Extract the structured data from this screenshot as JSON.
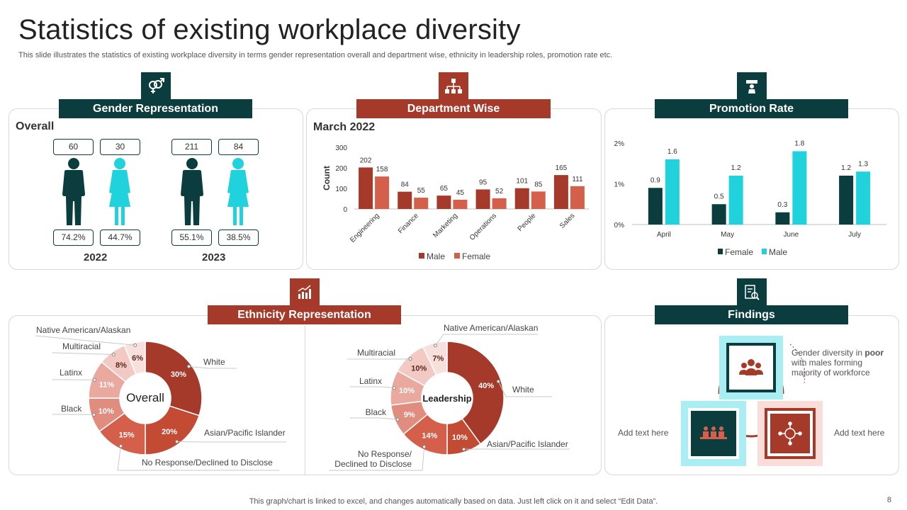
{
  "title": "Statistics of existing workplace diversity",
  "subtitle": "This slide illustrates the statistics of existing workplace diversity in terms gender representation overall and department wise, ethnicity in leadership roles, promotion rate etc.",
  "footer": "This graph/chart is linked to excel,  and changes automatically based on data. Just left click on it and select “Edit Data”.",
  "page_number": "8",
  "colors": {
    "teal_dark": "#0b3d3f",
    "cyan": "#1fd2dc",
    "rust": "#a63a2a",
    "male_bar": "#a63a2a",
    "female_bar": "#d4604c"
  },
  "gender": {
    "banner": "Gender Representation",
    "section_title": "Overall",
    "groups": [
      {
        "year": "2022",
        "male_count": "60",
        "female_count": "30",
        "male_pct": "74.2%",
        "female_pct": "44.7%"
      },
      {
        "year": "2023",
        "male_count": "211",
        "female_count": "84",
        "male_pct": "55.1%",
        "female_pct": "38.5%"
      }
    ]
  },
  "department": {
    "banner": "Department Wise",
    "section_title": "March 2022"
  },
  "promotion": {
    "banner": "Promotion Rate"
  },
  "ethnicity": {
    "banner": "Ethnicity Representation"
  },
  "findings": {
    "banner": "Findings",
    "top_text_pre": "Gender diversity  in ",
    "top_text_bold": "poor",
    "top_text_post": "with males forming majority of workforce",
    "left_text": "Add text here",
    "right_text": "Add  text here"
  },
  "chart_data": [
    {
      "type": "bar",
      "title": "March 2022",
      "categories": [
        "Engineering",
        "Finance",
        "Marketing",
        "Operations",
        "People",
        "Sales"
      ],
      "series": [
        {
          "name": "Male",
          "values": [
            202,
            84,
            65,
            95,
            101,
            165
          ]
        },
        {
          "name": "Female",
          "values": [
            158,
            55,
            45,
            52,
            85,
            111
          ]
        }
      ],
      "ylabel": "Count",
      "ylim": [
        0,
        300
      ],
      "yticks": [
        "0",
        "100",
        "200",
        "300"
      ],
      "legend": "bottom"
    },
    {
      "type": "bar",
      "title": "Promotion Rate",
      "categories": [
        "April",
        "May",
        "June",
        "July"
      ],
      "series": [
        {
          "name": "Female",
          "values": [
            0.9,
            0.5,
            0.3,
            1.2
          ]
        },
        {
          "name": "Male",
          "values": [
            1.6,
            1.2,
            1.8,
            1.3
          ]
        }
      ],
      "ylim": [
        0,
        2
      ],
      "yticks": [
        "0%",
        "1%",
        "2%"
      ],
      "legend": "bottom"
    },
    {
      "type": "pie",
      "title": "Overall",
      "slices": [
        {
          "label": "White",
          "value": 30,
          "text": "30%"
        },
        {
          "label": "Asian/Pacific Islander",
          "value": 20,
          "text": "20%"
        },
        {
          "label": "No Response/Declined to Disclose",
          "value": 15,
          "text": "15%"
        },
        {
          "label": "Black",
          "value": 10,
          "text": "10%"
        },
        {
          "label": "Latinx",
          "value": 11,
          "text": "11%"
        },
        {
          "label": "Multiracial",
          "value": 8,
          "text": "8%"
        },
        {
          "label": "Native American/Alaskan",
          "value": 6,
          "text": "6%"
        }
      ]
    },
    {
      "type": "pie",
      "title": "Leadership",
      "slices": [
        {
          "label": "White",
          "value": 40,
          "text": "40%"
        },
        {
          "label": "Asian/Pacific Islander",
          "value": 10,
          "text": "10%"
        },
        {
          "label": "No Response/ Declined to Disclose",
          "value": 14,
          "text": "14%"
        },
        {
          "label": "Black",
          "value": 9,
          "text": "9%"
        },
        {
          "label": "Latinx",
          "value": 10,
          "text": "10%"
        },
        {
          "label": "Multiracial",
          "value": 10,
          "text": "10%"
        },
        {
          "label": "Native American/Alaskan",
          "value": 7,
          "text": "7%"
        }
      ]
    }
  ]
}
